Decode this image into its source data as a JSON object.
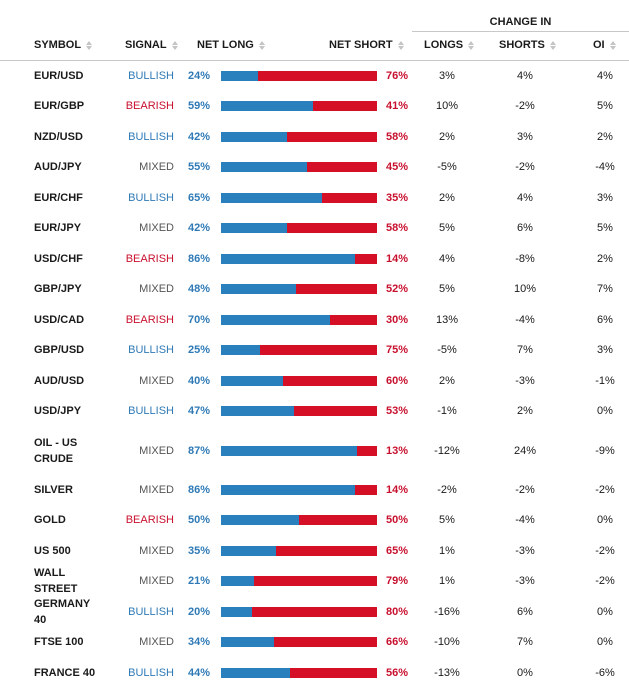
{
  "header": {
    "change_in": "CHANGE IN",
    "symbol": "SYMBOL",
    "signal": "SIGNAL",
    "net_long": "NET LONG",
    "net_short": "NET SHORT",
    "longs": "LONGS",
    "shorts": "SHORTS",
    "oi": "OI"
  },
  "colors": {
    "bullish": "#2f7ab6",
    "bearish": "#c8102e",
    "mixed": "#555555",
    "long_bar": "#2a80bd",
    "short_bar": "#d40f26"
  },
  "rows": [
    {
      "symbol": "EUR/USD",
      "signal": "BULLISH",
      "net_long": "24%",
      "net_long_value": 24,
      "net_short": "76%",
      "longs": "3%",
      "shorts": "4%",
      "oi": "4%"
    },
    {
      "symbol": "EUR/GBP",
      "signal": "BEARISH",
      "net_long": "59%",
      "net_long_value": 59,
      "net_short": "41%",
      "longs": "10%",
      "shorts": "-2%",
      "oi": "5%"
    },
    {
      "symbol": "NZD/USD",
      "signal": "BULLISH",
      "net_long": "42%",
      "net_long_value": 42,
      "net_short": "58%",
      "longs": "2%",
      "shorts": "3%",
      "oi": "2%"
    },
    {
      "symbol": "AUD/JPY",
      "signal": "MIXED",
      "net_long": "55%",
      "net_long_value": 55,
      "net_short": "45%",
      "longs": "-5%",
      "shorts": "-2%",
      "oi": "-4%"
    },
    {
      "symbol": "EUR/CHF",
      "signal": "BULLISH",
      "net_long": "65%",
      "net_long_value": 65,
      "net_short": "35%",
      "longs": "2%",
      "shorts": "4%",
      "oi": "3%"
    },
    {
      "symbol": "EUR/JPY",
      "signal": "MIXED",
      "net_long": "42%",
      "net_long_value": 42,
      "net_short": "58%",
      "longs": "5%",
      "shorts": "6%",
      "oi": "5%"
    },
    {
      "symbol": "USD/CHF",
      "signal": "BEARISH",
      "net_long": "86%",
      "net_long_value": 86,
      "net_short": "14%",
      "longs": "4%",
      "shorts": "-8%",
      "oi": "2%"
    },
    {
      "symbol": "GBP/JPY",
      "signal": "MIXED",
      "net_long": "48%",
      "net_long_value": 48,
      "net_short": "52%",
      "longs": "5%",
      "shorts": "10%",
      "oi": "7%"
    },
    {
      "symbol": "USD/CAD",
      "signal": "BEARISH",
      "net_long": "70%",
      "net_long_value": 70,
      "net_short": "30%",
      "longs": "13%",
      "shorts": "-4%",
      "oi": "6%"
    },
    {
      "symbol": "GBP/USD",
      "signal": "BULLISH",
      "net_long": "25%",
      "net_long_value": 25,
      "net_short": "75%",
      "longs": "-5%",
      "shorts": "7%",
      "oi": "3%"
    },
    {
      "symbol": "AUD/USD",
      "signal": "MIXED",
      "net_long": "40%",
      "net_long_value": 40,
      "net_short": "60%",
      "longs": "2%",
      "shorts": "-3%",
      "oi": "-1%"
    },
    {
      "symbol": "USD/JPY",
      "signal": "BULLISH",
      "net_long": "47%",
      "net_long_value": 47,
      "net_short": "53%",
      "longs": "-1%",
      "shorts": "2%",
      "oi": "0%"
    },
    {
      "symbol": "OIL - US CRUDE",
      "signal": "MIXED",
      "net_long": "87%",
      "net_long_value": 87,
      "net_short": "13%",
      "longs": "-12%",
      "shorts": "24%",
      "oi": "-9%"
    },
    {
      "symbol": "SILVER",
      "signal": "MIXED",
      "net_long": "86%",
      "net_long_value": 86,
      "net_short": "14%",
      "longs": "-2%",
      "shorts": "-2%",
      "oi": "-2%"
    },
    {
      "symbol": "GOLD",
      "signal": "BEARISH",
      "net_long": "50%",
      "net_long_value": 50,
      "net_short": "50%",
      "longs": "5%",
      "shorts": "-4%",
      "oi": "0%"
    },
    {
      "symbol": "US 500",
      "signal": "MIXED",
      "net_long": "35%",
      "net_long_value": 35,
      "net_short": "65%",
      "longs": "1%",
      "shorts": "-3%",
      "oi": "-2%"
    },
    {
      "symbol": "WALL STREET",
      "signal": "MIXED",
      "net_long": "21%",
      "net_long_value": 21,
      "net_short": "79%",
      "longs": "1%",
      "shorts": "-3%",
      "oi": "-2%"
    },
    {
      "symbol": "GERMANY 40",
      "signal": "BULLISH",
      "net_long": "20%",
      "net_long_value": 20,
      "net_short": "80%",
      "longs": "-16%",
      "shorts": "6%",
      "oi": "0%"
    },
    {
      "symbol": "FTSE 100",
      "signal": "MIXED",
      "net_long": "34%",
      "net_long_value": 34,
      "net_short": "66%",
      "longs": "-10%",
      "shorts": "7%",
      "oi": "0%"
    },
    {
      "symbol": "FRANCE 40",
      "signal": "BULLISH",
      "net_long": "44%",
      "net_long_value": 44,
      "net_short": "56%",
      "longs": "-13%",
      "shorts": "0%",
      "oi": "-6%"
    }
  ]
}
